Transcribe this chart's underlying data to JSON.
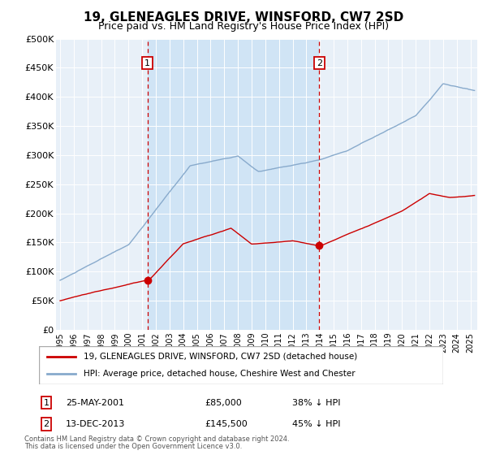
{
  "title": "19, GLENEAGLES DRIVE, WINSFORD, CW7 2SD",
  "subtitle": "Price paid vs. HM Land Registry's House Price Index (HPI)",
  "title_fontsize": 11,
  "subtitle_fontsize": 9,
  "background_color": "#ffffff",
  "plot_bg_color": "#e8f0f8",
  "shaded_region_color": "#d0e4f5",
  "grid_color": "#cccccc",
  "ylim": [
    0,
    500000
  ],
  "yticks": [
    0,
    50000,
    100000,
    150000,
    200000,
    250000,
    300000,
    350000,
    400000,
    450000,
    500000
  ],
  "ytick_labels": [
    "£0",
    "£50K",
    "£100K",
    "£150K",
    "£200K",
    "£250K",
    "£300K",
    "£350K",
    "£400K",
    "£450K",
    "£500K"
  ],
  "xlim_start": 1994.7,
  "xlim_end": 2025.5,
  "sale1_date": 2001.39,
  "sale1_price": 85000,
  "sale1_label": "1",
  "sale1_text": "25-MAY-2001",
  "sale1_price_text": "£85,000",
  "sale1_pct": "38% ↓ HPI",
  "sale2_date": 2013.95,
  "sale2_price": 145500,
  "sale2_label": "2",
  "sale2_text": "13-DEC-2013",
  "sale2_price_text": "£145,500",
  "sale2_pct": "45% ↓ HPI",
  "red_line_color": "#cc0000",
  "blue_line_color": "#88aacc",
  "marker_box_color": "#cc0000",
  "dashed_line_color": "#cc0000",
  "legend_label_red": "19, GLENEAGLES DRIVE, WINSFORD, CW7 2SD (detached house)",
  "legend_label_blue": "HPI: Average price, detached house, Cheshire West and Chester",
  "footer_line1": "Contains HM Land Registry data © Crown copyright and database right 2024.",
  "footer_line2": "This data is licensed under the Open Government Licence v3.0."
}
